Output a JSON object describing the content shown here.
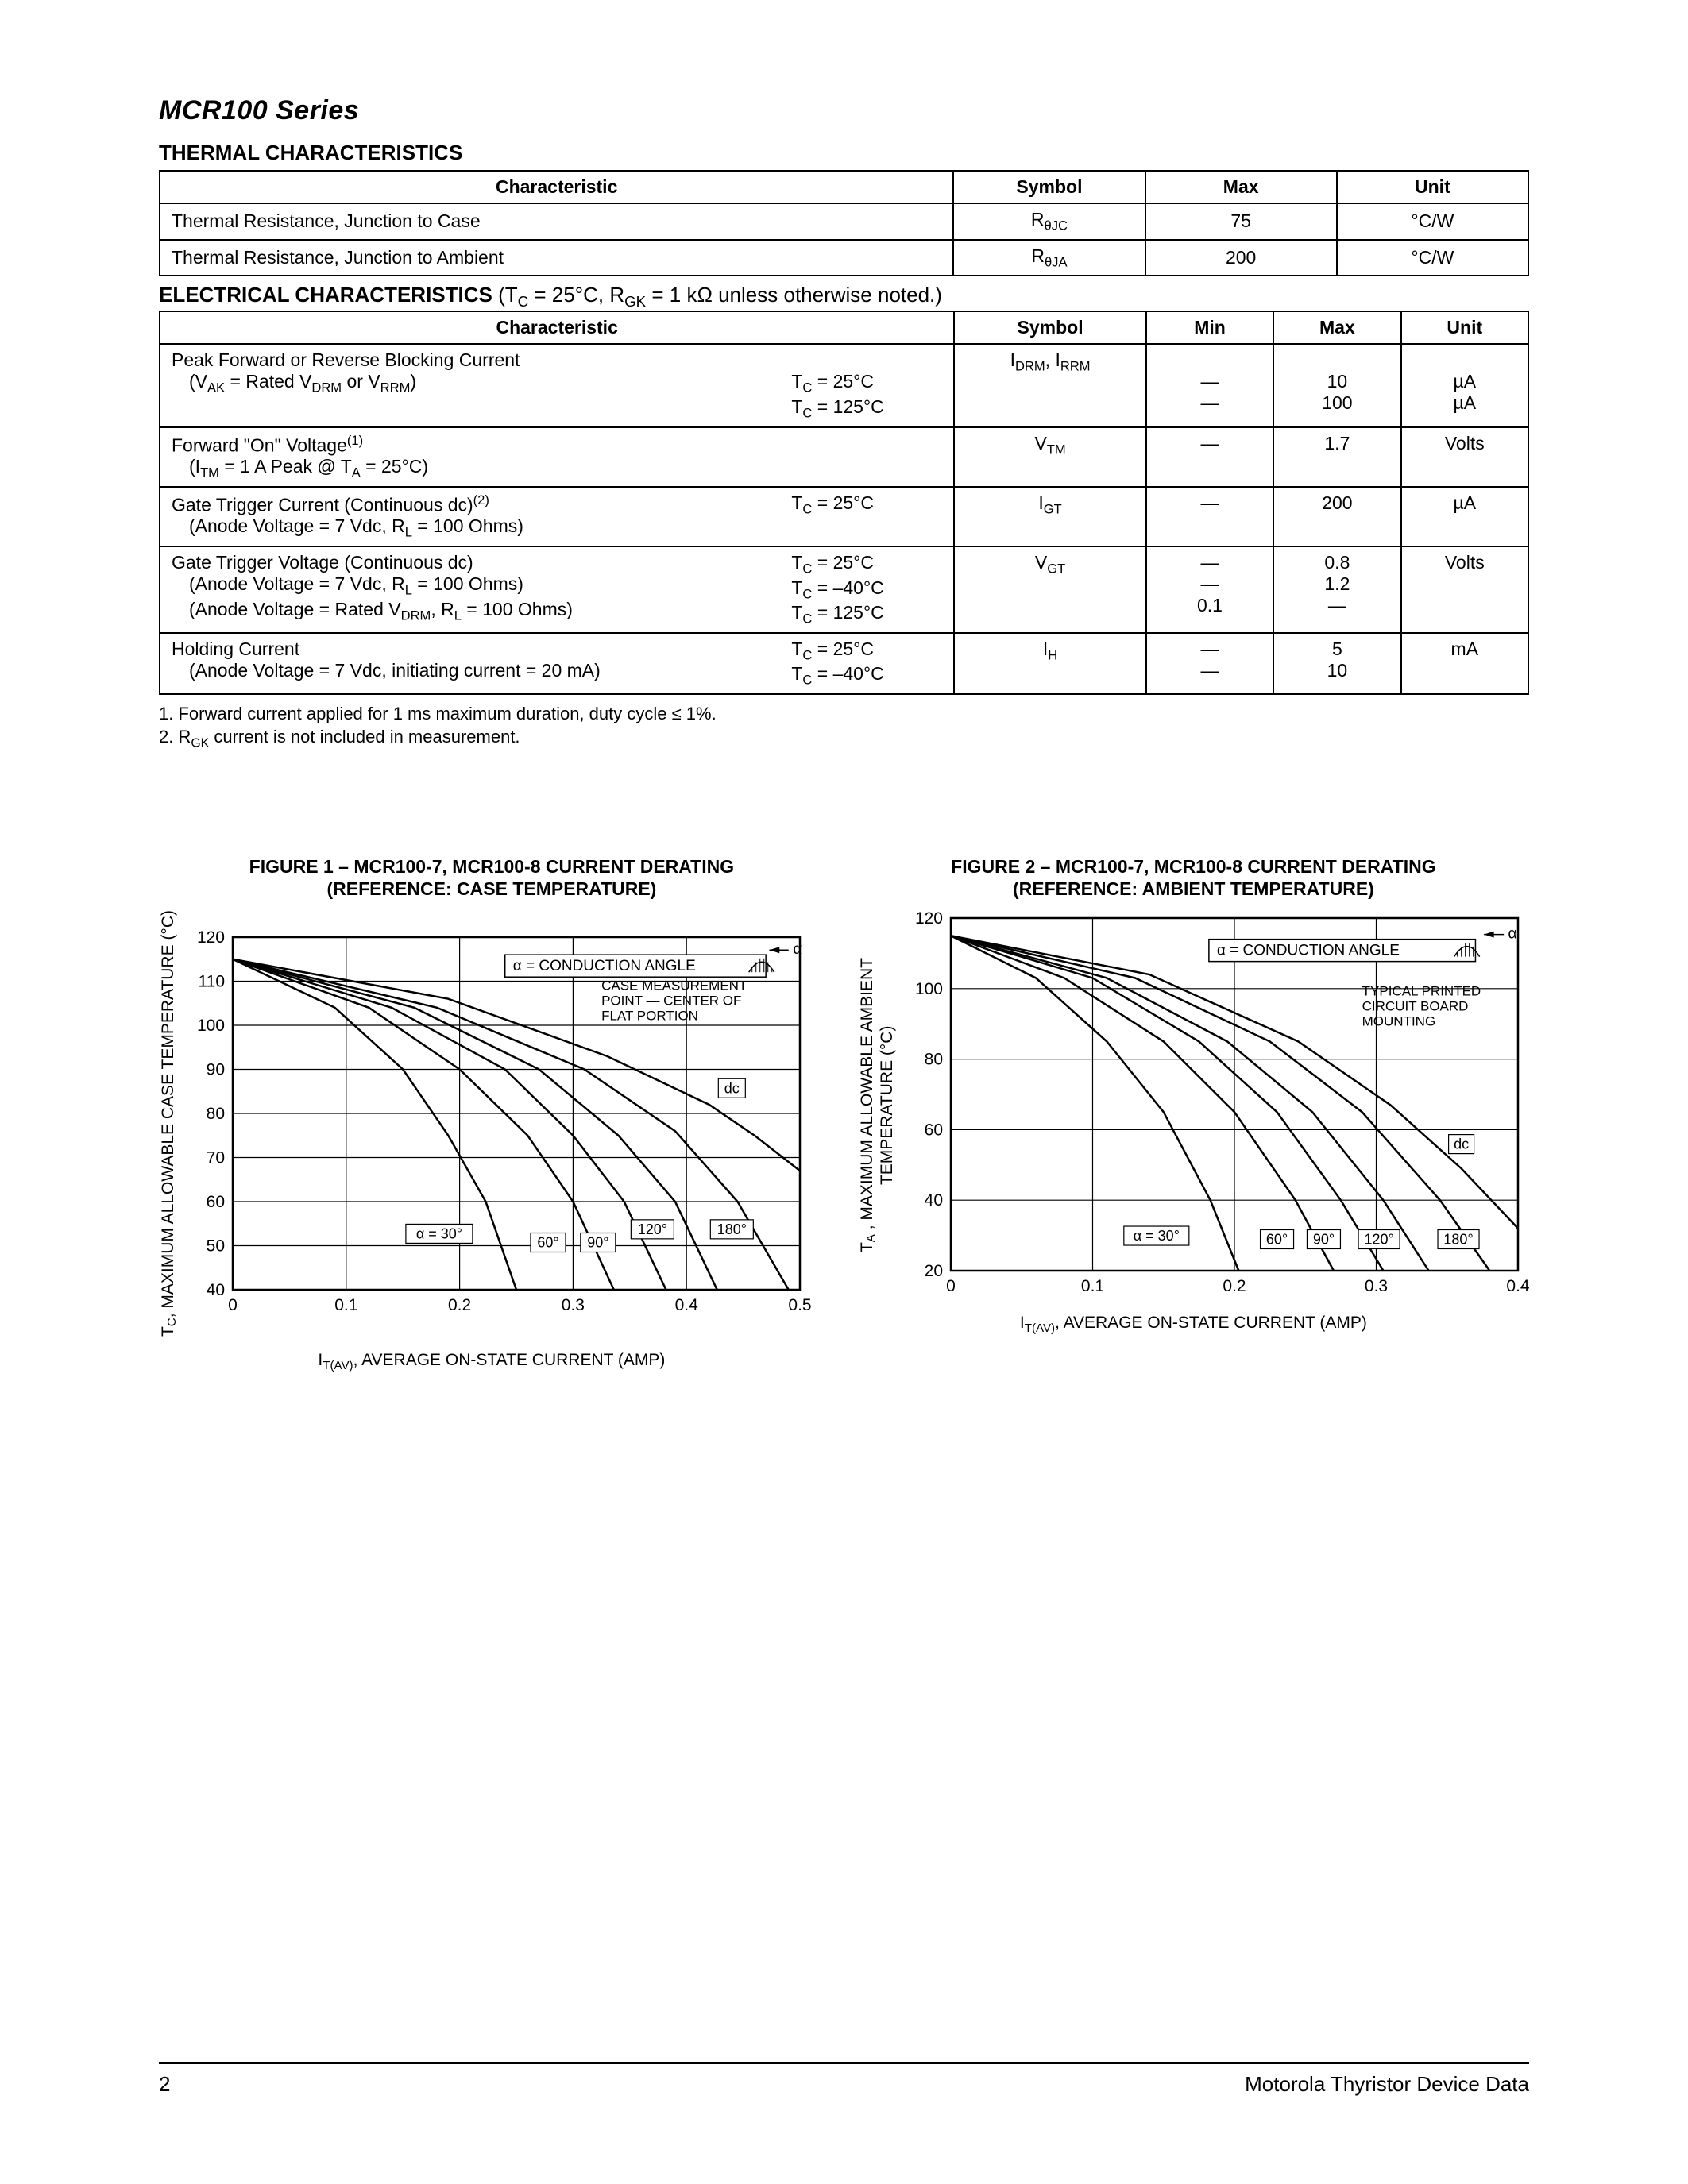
{
  "header": {
    "series": "MCR100 Series"
  },
  "thermal": {
    "title": "THERMAL CHARACTERISTICS",
    "cols": [
      "Characteristic",
      "Symbol",
      "Max",
      "Unit"
    ],
    "rows": [
      {
        "char": "Thermal Resistance, Junction to Case",
        "sym_html": "R<span class='sub'>θJC</span>",
        "max": "75",
        "unit": "°C/W"
      },
      {
        "char": "Thermal Resistance, Junction to Ambient",
        "sym_html": "R<span class='sub'>θJA</span>",
        "max": "200",
        "unit": "°C/W"
      }
    ]
  },
  "electrical": {
    "title_bold": "ELECTRICAL CHARACTERISTICS",
    "title_rest": " (T<span class='sub'>C</span> = 25°C, R<span class='sub'>GK</span> = 1 kΩ unless otherwise noted.)",
    "cols": [
      "Characteristic",
      "Symbol",
      "Min",
      "Max",
      "Unit"
    ],
    "rows": [
      {
        "left_lines": [
          "Peak Forward or Reverse Blocking Current",
          "<span class='indent'>(V<span class='sub'>AK</span> = Rated V<span class='sub'>DRM</span> or V<span class='sub'>RRM</span>)</span>"
        ],
        "right_lines": [
          "",
          "T<span class='sub'>C</span> = 25°C",
          "T<span class='sub'>C</span> = 125°C"
        ],
        "sym": "I<span class='sub'>DRM</span>, I<span class='sub'>RRM</span>",
        "min": [
          "",
          "—",
          "—"
        ],
        "max": [
          "",
          "10",
          "100"
        ],
        "unit": [
          "",
          "µA",
          "µA"
        ]
      },
      {
        "left_lines": [
          "Forward \"On\" Voltage<span class='sup'>(1)</span>",
          "<span class='indent'>(I<span class='sub'>TM</span> = 1 A Peak @ T<span class='sub'>A</span> = 25°C)</span>"
        ],
        "right_lines": [
          "",
          ""
        ],
        "sym": "V<span class='sub'>TM</span>",
        "min": [
          "—"
        ],
        "max": [
          "1.7"
        ],
        "unit": [
          "Volts"
        ]
      },
      {
        "left_lines": [
          "Gate Trigger Current (Continuous dc)<span class='sup'>(2)</span>",
          "<span class='indent'>(Anode Voltage = 7 Vdc, R<span class='sub'>L</span> = 100 Ohms)</span>"
        ],
        "right_lines": [
          "T<span class='sub'>C</span> = 25°C",
          ""
        ],
        "sym": "I<span class='sub'>GT</span>",
        "min": [
          "—"
        ],
        "max": [
          "200"
        ],
        "unit": [
          "µA"
        ]
      },
      {
        "left_lines": [
          "Gate Trigger Voltage (Continuous dc)",
          "<span class='indent'>(Anode Voltage = 7 Vdc, R<span class='sub'>L</span> = 100 Ohms)</span>",
          "<span class='indent'>(Anode Voltage = Rated V<span class='sub'>DRM</span>, R<span class='sub'>L</span> = 100 Ohms)</span>"
        ],
        "right_lines": [
          "T<span class='sub'>C</span> = 25°C",
          "T<span class='sub'>C</span> = –40°C",
          "T<span class='sub'>C</span> = 125°C"
        ],
        "sym": "V<span class='sub'>GT</span>",
        "min": [
          "—",
          "—",
          "0.1"
        ],
        "max": [
          "0.8",
          "1.2",
          "—"
        ],
        "unit": [
          "Volts"
        ]
      },
      {
        "left_lines": [
          "Holding Current",
          "<span class='indent'>(Anode Voltage = 7 Vdc, initiating current = 20 mA)</span>"
        ],
        "right_lines": [
          "T<span class='sub'>C</span> = 25°C",
          "T<span class='sub'>C</span> = –40°C"
        ],
        "sym": "I<span class='sub'>H</span>",
        "min": [
          "—",
          "—"
        ],
        "max": [
          "5",
          "10"
        ],
        "unit": [
          "mA"
        ]
      }
    ],
    "notes": [
      "1. Forward current applied for 1 ms maximum duration, duty cycle ≤ 1%.",
      "2. R<span class='sub'>GK</span> current is not included in measurement."
    ]
  },
  "figures": {
    "fig1": {
      "title": "FIGURE 1 – MCR100-7, MCR100-8 CURRENT DERATING<br>(REFERENCE: CASE TEMPERATURE)",
      "ylabel": "T<tspan baseline-shift='-6' font-size='15'>C</tspan>, MAXIMUM ALLOWABLE CASE TEMPERATURE (°C)",
      "xlabel": "I<span class='sub'>T(AV)</span>, AVERAGE ON-STATE CURRENT (AMP)",
      "xlim": [
        0,
        0.5
      ],
      "ylim": [
        40,
        120
      ],
      "xticks": [
        0,
        0.1,
        0.2,
        0.3,
        0.4,
        0.5
      ],
      "yticks": [
        40,
        50,
        60,
        70,
        80,
        90,
        100,
        110,
        120
      ],
      "grid_color": "#000000",
      "line_color": "#000000",
      "bg": "#ffffff",
      "line_width": 2.5,
      "grid_width": 1.2,
      "font_size": 21,
      "annotation1": "α = CONDUCTION ANGLE",
      "annotation2": [
        "CASE MEASUREMENT",
        "POINT — CENTER OF",
        "FLAT PORTION"
      ],
      "curve_labels": [
        "α = 30°",
        "60°",
        "90°",
        "120°",
        "180°",
        "dc"
      ],
      "series": {
        "a30": [
          [
            0,
            115
          ],
          [
            0.09,
            104
          ],
          [
            0.15,
            90
          ],
          [
            0.19,
            75
          ],
          [
            0.223,
            60
          ],
          [
            0.25,
            40
          ]
        ],
        "a60": [
          [
            0,
            115
          ],
          [
            0.12,
            104
          ],
          [
            0.2,
            90
          ],
          [
            0.26,
            75
          ],
          [
            0.3,
            60
          ],
          [
            0.336,
            40
          ]
        ],
        "a90": [
          [
            0,
            115
          ],
          [
            0.14,
            104
          ],
          [
            0.24,
            90
          ],
          [
            0.3,
            75
          ],
          [
            0.345,
            60
          ],
          [
            0.382,
            40
          ]
        ],
        "a120": [
          [
            0,
            115
          ],
          [
            0.16,
            104
          ],
          [
            0.27,
            90
          ],
          [
            0.34,
            75
          ],
          [
            0.39,
            60
          ],
          [
            0.427,
            40
          ]
        ],
        "a180": [
          [
            0,
            115
          ],
          [
            0.18,
            104
          ],
          [
            0.31,
            90
          ],
          [
            0.39,
            76
          ],
          [
            0.445,
            60
          ],
          [
            0.49,
            40
          ]
        ],
        "dc": [
          [
            0,
            115
          ],
          [
            0.19,
            106
          ],
          [
            0.33,
            93
          ],
          [
            0.42,
            82
          ],
          [
            0.46,
            75
          ],
          [
            0.5,
            67
          ]
        ]
      }
    },
    "fig2": {
      "title": "FIGURE 2 – MCR100-7, MCR100-8 CURRENT DERATING<br>(REFERENCE: AMBIENT TEMPERATURE)",
      "ylabel": "T<tspan baseline-shift='-6' font-size='15'>A</tspan> , MAXIMUM ALLOWABLE AMBIENT<br>TEMPERATURE (°C)",
      "xlabel": "I<span class='sub'>T(AV)</span>, AVERAGE ON-STATE CURRENT (AMP)",
      "xlim": [
        0,
        0.4
      ],
      "ylim": [
        20,
        120
      ],
      "xticks": [
        0,
        0.1,
        0.2,
        0.3,
        0.4
      ],
      "yticks": [
        20,
        40,
        60,
        80,
        100,
        120
      ],
      "grid_color": "#000000",
      "line_color": "#000000",
      "bg": "#ffffff",
      "line_width": 2.5,
      "grid_width": 1.2,
      "font_size": 21,
      "annotation1": "α = CONDUCTION ANGLE",
      "annotation2": [
        "TYPICAL PRINTED",
        "CIRCUIT BOARD",
        "MOUNTING"
      ],
      "curve_labels": [
        "α = 30°",
        "60°",
        "90°",
        "120°",
        "180°",
        "dc"
      ],
      "series": {
        "a30": [
          [
            0,
            115
          ],
          [
            0.06,
            103
          ],
          [
            0.11,
            85
          ],
          [
            0.15,
            65
          ],
          [
            0.183,
            40
          ],
          [
            0.203,
            20
          ]
        ],
        "a60": [
          [
            0,
            115
          ],
          [
            0.08,
            103
          ],
          [
            0.15,
            85
          ],
          [
            0.2,
            65
          ],
          [
            0.243,
            40
          ],
          [
            0.27,
            20
          ]
        ],
        "a90": [
          [
            0,
            115
          ],
          [
            0.1,
            103
          ],
          [
            0.175,
            85
          ],
          [
            0.23,
            65
          ],
          [
            0.275,
            40
          ],
          [
            0.305,
            20
          ]
        ],
        "a120": [
          [
            0,
            115
          ],
          [
            0.11,
            103
          ],
          [
            0.195,
            85
          ],
          [
            0.255,
            65
          ],
          [
            0.305,
            40
          ],
          [
            0.337,
            20
          ]
        ],
        "a180": [
          [
            0,
            115
          ],
          [
            0.13,
            103
          ],
          [
            0.225,
            85
          ],
          [
            0.29,
            65
          ],
          [
            0.345,
            40
          ],
          [
            0.38,
            20
          ]
        ],
        "dc": [
          [
            0,
            115
          ],
          [
            0.14,
            104
          ],
          [
            0.245,
            85
          ],
          [
            0.31,
            67
          ],
          [
            0.36,
            49
          ],
          [
            0.4,
            32
          ]
        ]
      }
    }
  },
  "footer": {
    "page": "2",
    "right": "Motorola Thyristor Device Data"
  }
}
